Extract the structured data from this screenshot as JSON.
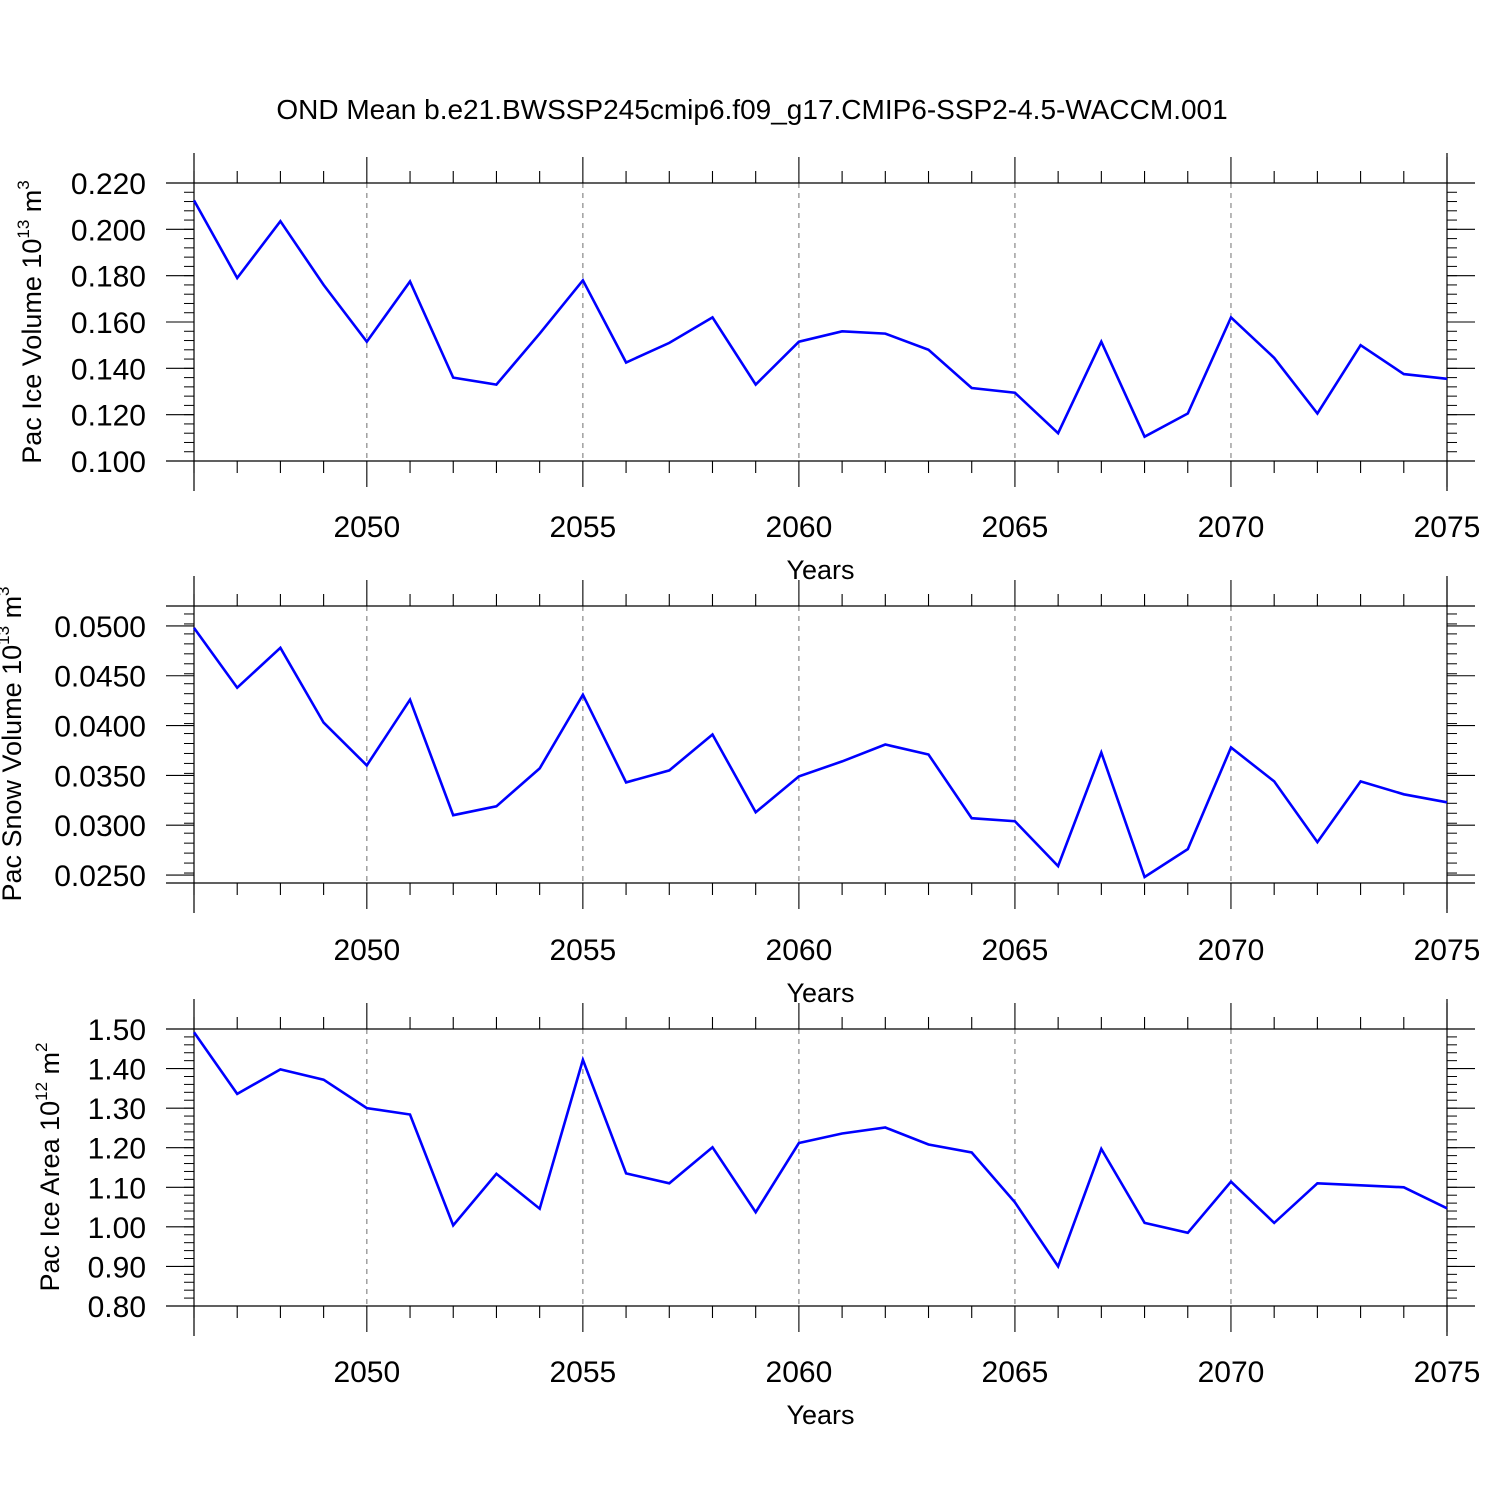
{
  "title": "OND Mean b.e21.BWSSP245cmip6.f09_g17.CMIP6-SSP2-4.5-WACCM.001",
  "line_color": "#0000ff",
  "chart_data": [
    {
      "type": "line",
      "ylabel": "Pac Ice Volume 10",
      "ylabel_exponent": "13",
      "ylabel_unit": " m",
      "ylabel_unit_exponent": "3",
      "xlabel": "Years",
      "xlim": [
        2046,
        2075
      ],
      "ylim": [
        0.1,
        0.22
      ],
      "xticks": [
        2050,
        2055,
        2060,
        2065,
        2070,
        2075
      ],
      "xtick_labels": [
        "2050",
        "2055",
        "2060",
        "2065",
        "2070",
        "2075"
      ],
      "yticks": [
        0.1,
        0.12,
        0.14,
        0.16,
        0.18,
        0.2,
        0.22
      ],
      "ytick_labels": [
        "0.100",
        "0.120",
        "0.140",
        "0.160",
        "0.180",
        "0.200",
        "0.220"
      ],
      "grid": "dashed vertical at major x ticks",
      "series": [
        {
          "x": [
            2046,
            2047,
            2048,
            2049,
            2050,
            2051,
            2052,
            2053,
            2054,
            2055,
            2056,
            2057,
            2058,
            2059,
            2060,
            2061,
            2062,
            2063,
            2064,
            2065,
            2066,
            2067,
            2068,
            2069,
            2070,
            2071,
            2072,
            2073,
            2074,
            2075
          ],
          "values": [
            0.2125,
            0.179,
            0.2035,
            0.176,
            0.1515,
            0.1775,
            0.136,
            0.133,
            0.155,
            0.178,
            0.1425,
            0.151,
            0.162,
            0.133,
            0.1515,
            0.156,
            0.155,
            0.148,
            0.1315,
            0.1295,
            0.112,
            0.1515,
            0.1105,
            0.1205,
            0.162,
            0.1445,
            0.1205,
            0.15,
            0.1375,
            0.1355
          ]
        }
      ]
    },
    {
      "type": "line",
      "ylabel": "Pac Snow Volume 10",
      "ylabel_exponent": "13",
      "ylabel_unit": " m",
      "ylabel_unit_exponent": "3",
      "xlabel": "Years",
      "xlim": [
        2046,
        2075
      ],
      "ylim": [
        0.0242,
        0.052
      ],
      "xticks": [
        2050,
        2055,
        2060,
        2065,
        2070,
        2075
      ],
      "xtick_labels": [
        "2050",
        "2055",
        "2060",
        "2065",
        "2070",
        "2075"
      ],
      "yticks": [
        0.025,
        0.03,
        0.035,
        0.04,
        0.045,
        0.05
      ],
      "ytick_labels": [
        "0.0250",
        "0.0300",
        "0.0350",
        "0.0400",
        "0.0450",
        "0.0500"
      ],
      "grid": "dashed vertical at major x ticks",
      "series": [
        {
          "x": [
            2046,
            2047,
            2048,
            2049,
            2050,
            2051,
            2052,
            2053,
            2054,
            2055,
            2056,
            2057,
            2058,
            2059,
            2060,
            2061,
            2062,
            2063,
            2064,
            2065,
            2066,
            2067,
            2068,
            2069,
            2070,
            2071,
            2072,
            2073,
            2074,
            2075
          ],
          "values": [
            0.0498,
            0.0438,
            0.0478,
            0.0403,
            0.036,
            0.0426,
            0.031,
            0.0319,
            0.0357,
            0.0431,
            0.0343,
            0.0355,
            0.0391,
            0.0313,
            0.0349,
            0.0364,
            0.0381,
            0.0371,
            0.0307,
            0.0304,
            0.0259,
            0.0373,
            0.0248,
            0.0276,
            0.0378,
            0.0344,
            0.0283,
            0.0344,
            0.0331,
            0.0323
          ]
        }
      ]
    },
    {
      "type": "line",
      "ylabel": "Pac Ice Area 10",
      "ylabel_exponent": "12",
      "ylabel_unit": " m",
      "ylabel_unit_exponent": "2",
      "xlabel": "Years",
      "xlim": [
        2046,
        2075
      ],
      "ylim": [
        0.8,
        1.5
      ],
      "xticks": [
        2050,
        2055,
        2060,
        2065,
        2070,
        2075
      ],
      "xtick_labels": [
        "2050",
        "2055",
        "2060",
        "2065",
        "2070",
        "2075"
      ],
      "yticks": [
        0.8,
        0.9,
        1.0,
        1.1,
        1.2,
        1.3,
        1.4,
        1.5
      ],
      "ytick_labels": [
        "0.80",
        "0.90",
        "1.00",
        "1.10",
        "1.20",
        "1.30",
        "1.40",
        "1.50"
      ],
      "grid": "dashed vertical at major x ticks",
      "series": [
        {
          "x": [
            2046,
            2047,
            2048,
            2049,
            2050,
            2051,
            2052,
            2053,
            2054,
            2055,
            2056,
            2057,
            2058,
            2059,
            2060,
            2061,
            2062,
            2063,
            2064,
            2065,
            2066,
            2067,
            2068,
            2069,
            2070,
            2071,
            2072,
            2073,
            2074,
            2075
          ],
          "values": [
            1.492,
            1.336,
            1.398,
            1.372,
            1.3,
            1.284,
            1.004,
            1.134,
            1.046,
            1.422,
            1.135,
            1.11,
            1.201,
            1.037,
            1.212,
            1.236,
            1.251,
            1.208,
            1.188,
            1.062,
            0.9,
            1.197,
            1.01,
            0.985,
            1.114,
            1.01,
            1.11,
            1.105,
            1.1,
            1.047
          ]
        }
      ]
    }
  ]
}
